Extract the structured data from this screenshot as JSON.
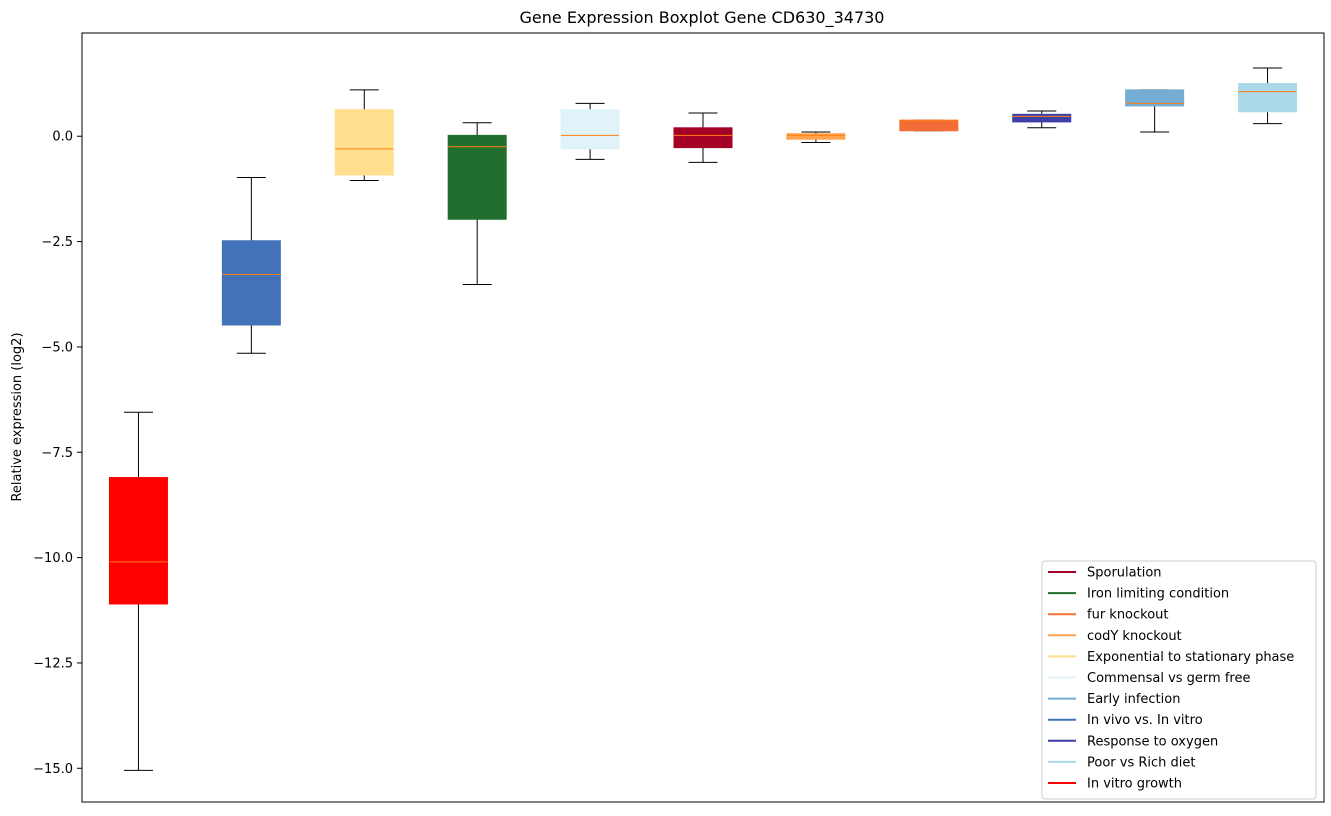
{
  "chart_data": {
    "type": "box",
    "title": "Gene Expression Boxplot Gene CD630_34730",
    "xlabel": "",
    "ylabel": "Relative expression (log2)",
    "ylim": [
      -15.8,
      2.45
    ],
    "yticks": [
      0.0,
      -2.5,
      -5.0,
      -7.5,
      -10.0,
      -12.5,
      -15.0
    ],
    "ytick_labels": [
      "0.0",
      "−2.5",
      "−5.0",
      "−7.5",
      "−10.0",
      "−12.5",
      "−15.0"
    ],
    "grid": false,
    "legend_position": "lower-right",
    "median_color": "#ff7f0e",
    "boxes": [
      {
        "color": "#ff0000",
        "whisker_low": -15.05,
        "q1": -11.1,
        "median": -10.1,
        "q3": -8.1,
        "whisker_high": -6.55
      },
      {
        "color": "#4472b8",
        "whisker_low": -5.15,
        "q1": -4.48,
        "median": -3.28,
        "q3": -2.48,
        "whisker_high": -0.98
      },
      {
        "color": "#ffdf8e",
        "whisker_low": -1.05,
        "q1": -0.92,
        "median": -0.3,
        "q3": 0.63,
        "whisker_high": 1.1
      },
      {
        "color": "#226e2e",
        "whisker_low": -3.52,
        "q1": -1.97,
        "median": -0.25,
        "q3": 0.02,
        "whisker_high": 0.32
      },
      {
        "color": "#dff3f8",
        "whisker_low": -0.55,
        "q1": -0.3,
        "median": 0.02,
        "q3": 0.63,
        "whisker_high": 0.78
      },
      {
        "color": "#a50026",
        "whisker_low": -0.62,
        "q1": -0.27,
        "median": 0.02,
        "q3": 0.2,
        "whisker_high": 0.55
      },
      {
        "color": "#fda350",
        "whisker_low": -0.15,
        "q1": -0.07,
        "median": 0.02,
        "q3": 0.06,
        "whisker_high": 0.1
      },
      {
        "color": "#f46d37",
        "whisker_low": 0.13,
        "q1": 0.13,
        "median": 0.38,
        "q3": 0.38,
        "whisker_high": 0.38
      },
      {
        "color": "#3e3fa8",
        "whisker_low": 0.2,
        "q1": 0.34,
        "median": 0.47,
        "q3": 0.52,
        "whisker_high": 0.6
      },
      {
        "color": "#74add1",
        "whisker_low": 0.1,
        "q1": 0.72,
        "median": 0.78,
        "q3": 1.1,
        "whisker_high": 1.1
      },
      {
        "color": "#abd9e9",
        "whisker_low": 0.3,
        "q1": 0.58,
        "median": 1.06,
        "q3": 1.25,
        "whisker_high": 1.62
      }
    ],
    "legend": [
      {
        "label": "Sporulation",
        "color": "#a50026"
      },
      {
        "label": "Iron limiting condition",
        "color": "#226e2e"
      },
      {
        "label": "fur knockout",
        "color": "#f46d37"
      },
      {
        "label": "codY knockout",
        "color": "#fda350"
      },
      {
        "label": "Exponential to stationary phase",
        "color": "#ffdf8e"
      },
      {
        "label": "Commensal vs germ free",
        "color": "#dff3f8"
      },
      {
        "label": "Early infection",
        "color": "#74add1"
      },
      {
        "label": "In vivo vs. In vitro",
        "color": "#4472b8"
      },
      {
        "label": "Response to oxygen",
        "color": "#3e3fa8"
      },
      {
        "label": "Poor vs Rich diet",
        "color": "#abd9e9"
      },
      {
        "label": "In vitro growth",
        "color": "#ff0000"
      }
    ]
  }
}
